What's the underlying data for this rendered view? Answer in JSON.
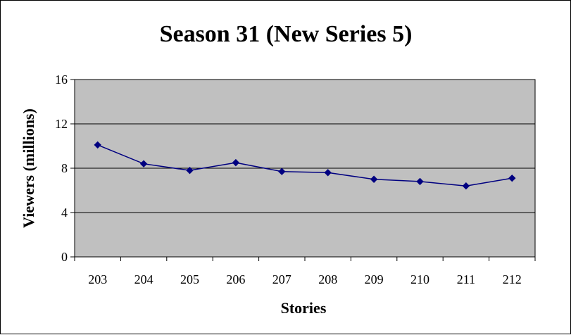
{
  "chart_data": {
    "type": "line",
    "title": "Season 31 (New Series 5)",
    "xlabel": "Stories",
    "ylabel": "Viewers (millions)",
    "categories": [
      "203",
      "204",
      "205",
      "206",
      "207",
      "208",
      "209",
      "210",
      "211",
      "212"
    ],
    "series": [
      {
        "values": [
          10.1,
          8.4,
          7.8,
          8.5,
          7.7,
          7.6,
          7.0,
          6.8,
          6.4,
          7.1
        ],
        "color": "#000080"
      }
    ],
    "ylim": [
      0,
      16
    ],
    "yticks": [
      0,
      4,
      8,
      12,
      16
    ],
    "grid": true,
    "plot_background": "#c0c0c0",
    "legend": "none"
  }
}
